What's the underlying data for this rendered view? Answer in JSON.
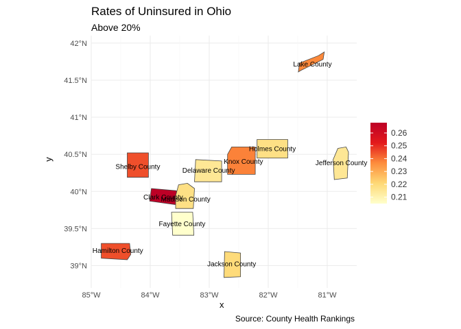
{
  "title": "Rates of Uninsured in Ohio",
  "subtitle": "Above 20%",
  "caption": "Source: County Health Rankings",
  "xlabel": "x",
  "ylabel": "y",
  "chart_data": {
    "type": "choropleth",
    "xlim": [
      -85,
      -80.5
    ],
    "ylim": [
      38.7,
      42.1
    ],
    "x_ticks": [
      -85,
      -84,
      -83,
      -82,
      -81
    ],
    "x_tick_labels": [
      "85°W",
      "84°W",
      "83°W",
      "82°W",
      "81°W"
    ],
    "y_ticks": [
      39,
      39.5,
      40,
      40.5,
      41,
      41.5,
      42
    ],
    "y_tick_labels": [
      "39°N",
      "39.5°N",
      "40°N",
      "40.5°N",
      "41°N",
      "41.5°N",
      "42°N"
    ],
    "grid": true,
    "legend": {
      "position": "right",
      "ticks": [
        0.21,
        0.22,
        0.23,
        0.24,
        0.25,
        0.26
      ],
      "tick_labels": [
        "0.21",
        "0.22",
        "0.23",
        "0.24",
        "0.25",
        "0.26"
      ],
      "range": [
        0.205,
        0.268
      ]
    },
    "counties": [
      {
        "name": "Lake County",
        "value": 0.237,
        "lon": -81.25,
        "lat": 41.71
      },
      {
        "name": "Holmes County",
        "value": 0.218,
        "lon": -81.93,
        "lat": 40.57
      },
      {
        "name": "Knox County",
        "value": 0.238,
        "lon": -82.42,
        "lat": 40.4
      },
      {
        "name": "Jefferson County",
        "value": 0.215,
        "lon": -80.76,
        "lat": 40.38
      },
      {
        "name": "Delaware County",
        "value": 0.215,
        "lon": -83.01,
        "lat": 40.28
      },
      {
        "name": "Shelby County",
        "value": 0.245,
        "lon": -84.21,
        "lat": 40.33
      },
      {
        "name": "Clark County",
        "value": 0.268,
        "lon": -83.78,
        "lat": 39.92
      },
      {
        "name": "Madison County",
        "value": 0.218,
        "lon": -83.4,
        "lat": 39.89
      },
      {
        "name": "Fayette County",
        "value": 0.205,
        "lon": -83.46,
        "lat": 39.56
      },
      {
        "name": "Hamilton County",
        "value": 0.245,
        "lon": -84.55,
        "lat": 39.2
      },
      {
        "name": "Jackson County",
        "value": 0.22,
        "lon": -82.62,
        "lat": 39.02
      }
    ]
  }
}
